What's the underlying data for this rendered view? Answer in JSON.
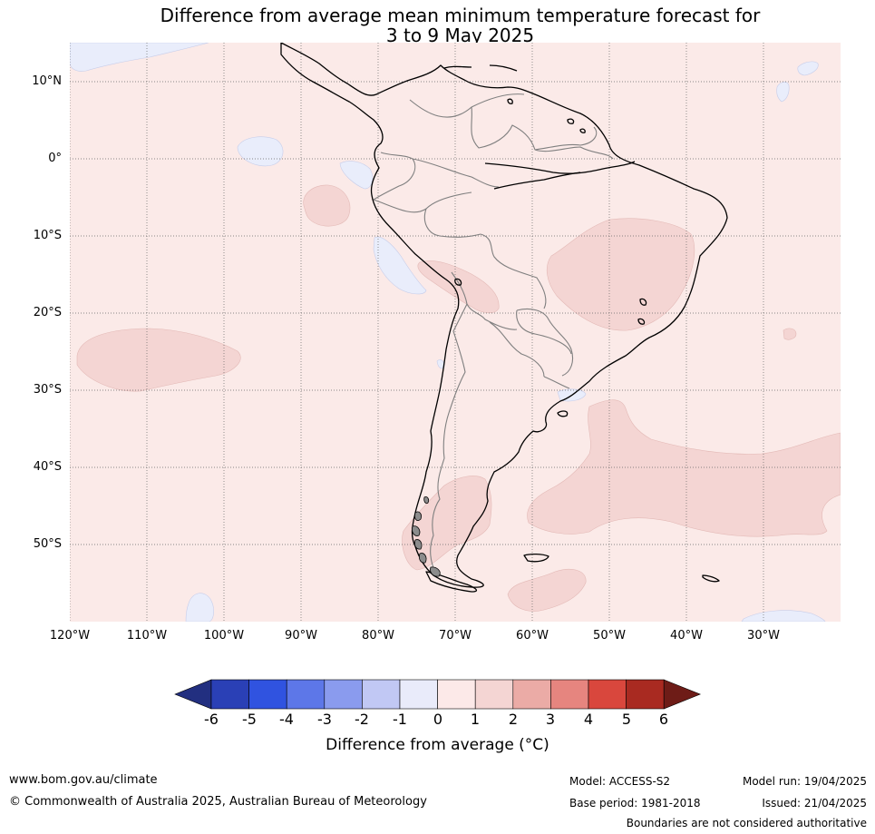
{
  "title": {
    "line1": "Difference from average mean minimum temperature forecast for",
    "line2": "3 to 9 May 2025"
  },
  "map": {
    "region": "South America",
    "lon_range": [
      -125,
      -25
    ],
    "lat_range": [
      -60,
      15
    ],
    "lat_labels": [
      "10°N",
      "0°",
      "10°S",
      "20°S",
      "30°S",
      "40°S",
      "50°S"
    ],
    "lon_labels": [
      "120°W",
      "110°W",
      "100°W",
      "90°W",
      "80°W",
      "70°W",
      "60°W",
      "50°W",
      "40°W",
      "30°W"
    ],
    "background_category": "0 to 1",
    "colors": {
      "ocean_land_0_1": "#fbeae8",
      "band_1_2": "#f4d5d3",
      "band_m1_0": "#e9edfb",
      "coastline": "#000000",
      "borders": "#7f7f7f",
      "gridline": "#555555"
    }
  },
  "colorbar": {
    "ticks": [
      "-6",
      "-5",
      "-4",
      "-3",
      "-2",
      "-1",
      "0",
      "1",
      "2",
      "3",
      "4",
      "5",
      "6"
    ],
    "colors": [
      "#222f80",
      "#2a40b6",
      "#3053e0",
      "#5d77e8",
      "#8a9bee",
      "#c1c8f4",
      "#e9ebfa",
      "#fce9e8",
      "#f4d5d3",
      "#ebaba6",
      "#e6857f",
      "#d9473d",
      "#a92a21",
      "#6e1c17"
    ],
    "label": "Difference from average ($^\\circ$C)",
    "label_display": "Difference from average (°C)"
  },
  "footer": {
    "website": "www.bom.gov.au/climate",
    "copyright": "© Commonwealth of Australia 2025, Australian Bureau of Meteorology",
    "model": "Model: ACCESS-S2",
    "base_period": "Base period: 1981-2018",
    "model_run": "Model run: 19/04/2025",
    "issued": "Issued: 21/04/2025",
    "disclaimer": "Boundaries are not considered authoritative"
  }
}
